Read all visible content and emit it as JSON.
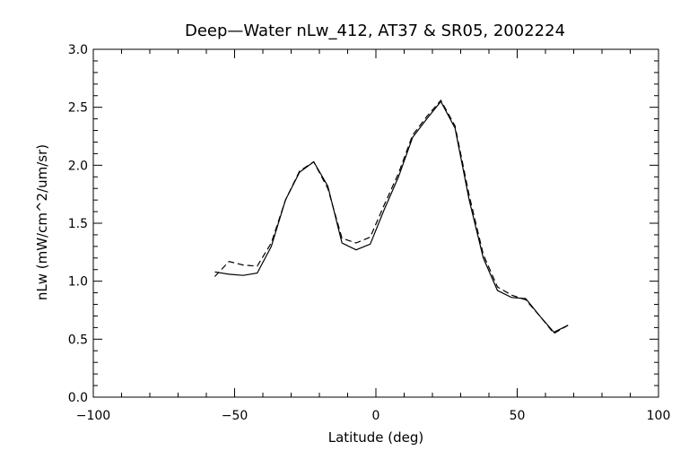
{
  "chart_data": {
    "type": "line",
    "title": "Deep—Water nLw_412, AT37 & SR05, 2002224",
    "xlabel": "Latitude (deg)",
    "ylabel": "nLw (mW/cm^2/um/sr)",
    "xlim": [
      -100,
      100
    ],
    "ylim": [
      0.0,
      3.0
    ],
    "xticks": [
      -100,
      -50,
      0,
      50,
      100
    ],
    "xtick_labels": [
      "−100",
      "−50",
      "0",
      "50",
      "100"
    ],
    "yticks": [
      0.0,
      0.5,
      1.0,
      1.5,
      2.0,
      2.5,
      3.0
    ],
    "ytick_labels": [
      "0.0",
      "0.5",
      "1.0",
      "1.5",
      "2.0",
      "2.5",
      "3.0"
    ],
    "grid": false,
    "series": [
      {
        "style": "solid",
        "color": "#000000",
        "x": [
          -57,
          -52,
          -47,
          -42,
          -37,
          -32,
          -27,
          -22,
          -17,
          -12,
          -7,
          -2,
          3,
          8,
          13,
          18,
          23,
          28,
          33,
          38,
          43,
          48,
          53,
          58,
          63,
          68
        ],
        "y": [
          1.08,
          1.06,
          1.05,
          1.07,
          1.3,
          1.7,
          1.94,
          2.03,
          1.82,
          1.33,
          1.27,
          1.32,
          1.62,
          1.9,
          2.24,
          2.4,
          2.55,
          2.32,
          1.7,
          1.2,
          0.92,
          0.86,
          0.85,
          0.7,
          0.56,
          0.62
        ]
      },
      {
        "style": "dashed",
        "color": "#000000",
        "x": [
          -57,
          -52,
          -47,
          -42,
          -37,
          -32,
          -27,
          -22,
          -17,
          -12,
          -7,
          -2,
          3,
          8,
          13,
          18,
          23,
          28,
          33,
          38,
          43,
          48,
          53,
          58,
          63,
          68
        ],
        "y": [
          1.04,
          1.17,
          1.14,
          1.13,
          1.33,
          1.7,
          1.95,
          2.03,
          1.8,
          1.37,
          1.33,
          1.38,
          1.66,
          1.93,
          2.26,
          2.42,
          2.56,
          2.34,
          1.74,
          1.23,
          0.95,
          0.88,
          0.84,
          0.7,
          0.55,
          0.62
        ]
      }
    ]
  }
}
